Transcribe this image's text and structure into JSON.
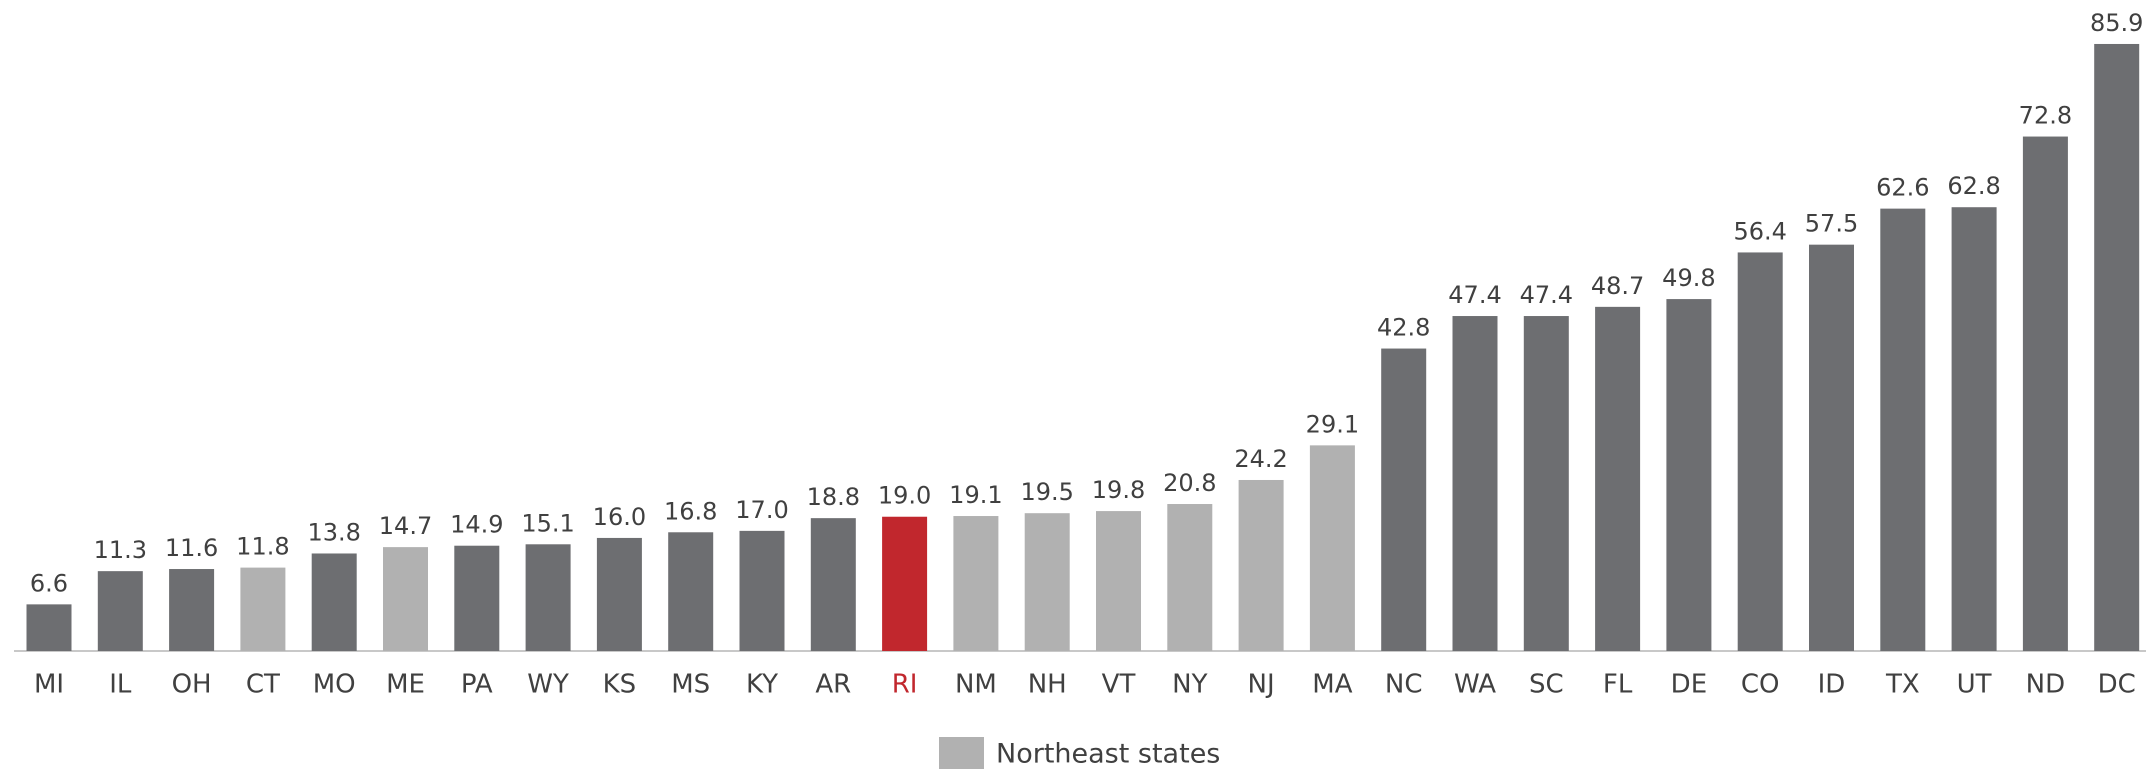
{
  "chart_data": {
    "type": "bar",
    "categories": [
      "MI",
      "IL",
      "OH",
      "CT",
      "MO",
      "ME",
      "PA",
      "WY",
      "KS",
      "MS",
      "KY",
      "AR",
      "RI",
      "NM",
      "NH",
      "VT",
      "NY",
      "NJ",
      "MA",
      "NC",
      "WA",
      "SC",
      "FL",
      "DE",
      "CO",
      "ID",
      "TX",
      "UT",
      "ND",
      "DC"
    ],
    "values": [
      6.6,
      11.3,
      11.6,
      11.8,
      13.8,
      14.7,
      14.9,
      15.1,
      16.0,
      16.8,
      17.0,
      18.8,
      19.0,
      19.1,
      19.5,
      19.8,
      20.8,
      24.2,
      29.1,
      42.8,
      47.4,
      47.4,
      48.7,
      49.8,
      56.4,
      57.5,
      62.6,
      62.8,
      72.8,
      85.9
    ],
    "value_labels": [
      "6.6",
      "11.3",
      "11.6",
      "11.8",
      "13.8",
      "14.7",
      "14.9",
      "15.1",
      "16.0",
      "16.8",
      "17.0",
      "18.8",
      "19.0",
      "19.1",
      "19.5",
      "19.8",
      "20.8",
      "24.2",
      "29.1",
      "42.8",
      "47.4",
      "47.4",
      "48.7",
      "49.8",
      "56.4",
      "57.5",
      "62.6",
      "62.8",
      "72.8",
      "85.9"
    ],
    "colors": [
      "#6d6e71",
      "#6d6e71",
      "#6d6e71",
      "#b1b1b1",
      "#6d6e71",
      "#b1b1b1",
      "#6d6e71",
      "#6d6e71",
      "#6d6e71",
      "#6d6e71",
      "#6d6e71",
      "#6d6e71",
      "#c1272d",
      "#b1b1b1",
      "#b1b1b1",
      "#b1b1b1",
      "#b1b1b1",
      "#b1b1b1",
      "#b1b1b1",
      "#6d6e71",
      "#6d6e71",
      "#6d6e71",
      "#6d6e71",
      "#6d6e71",
      "#6d6e71",
      "#6d6e71",
      "#6d6e71",
      "#6d6e71",
      "#6d6e71",
      "#6d6e71"
    ],
    "highlight": "RI",
    "highlight_color": "#c1272d",
    "ylim": [
      0,
      90
    ],
    "legend": {
      "label": "Northeast states",
      "color": "#b1b1b1"
    }
  }
}
